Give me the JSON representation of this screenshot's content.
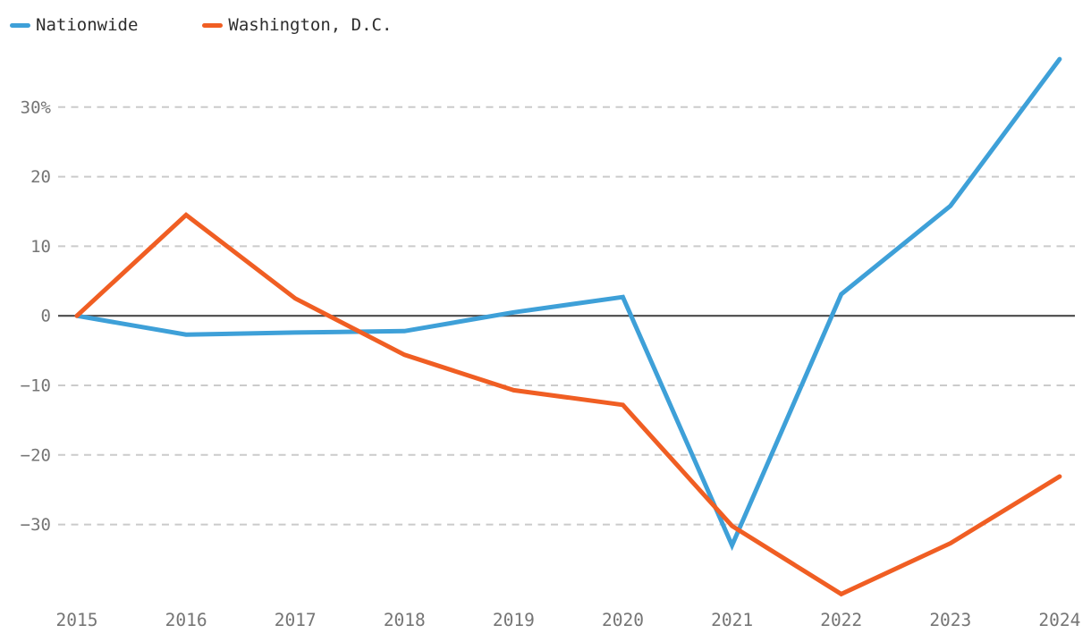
{
  "colors": {
    "background": "#FFFFFF",
    "gridline": "#CBCBCB",
    "zero_line": "#4A4A4A",
    "tick_label": "#757575",
    "legend_text": "#2E2E2E",
    "nationwide_blue": "#3EA0D8",
    "washington_orange": "#F05E23"
  },
  "legend": {
    "position": "top-left",
    "items": [
      {
        "label": "Nationwide",
        "color": "#3EA0D8"
      },
      {
        "label": "Washington, D.C.",
        "color": "#F05E23"
      }
    ]
  },
  "chart_data": {
    "type": "line",
    "title": "",
    "xlabel": "",
    "ylabel": "",
    "y_unit": "%",
    "ylim": [
      -42,
      38
    ],
    "grid": "horizontal-dashed",
    "zero_baseline": true,
    "legend_position": "top-left",
    "x": [
      2015,
      2016,
      2017,
      2018,
      2019,
      2020,
      2021,
      2022,
      2023,
      2024
    ],
    "x_tick_labels": [
      "2015",
      "2016",
      "2017",
      "2018",
      "2019",
      "2020",
      "2021",
      "2022",
      "2023",
      "2024"
    ],
    "y_ticks": [
      {
        "value": 30,
        "label": "30%"
      },
      {
        "value": 20,
        "label": "20"
      },
      {
        "value": 10,
        "label": "10"
      },
      {
        "value": 0,
        "label": "0"
      },
      {
        "value": -10,
        "label": "−10"
      },
      {
        "value": -20,
        "label": "−20"
      },
      {
        "value": -30,
        "label": "−30"
      }
    ],
    "series": [
      {
        "name": "Nationwide",
        "color": "#3EA0D8",
        "values": [
          0,
          -2.7,
          -2.4,
          -2.2,
          0.5,
          2.7,
          -33,
          3.1,
          15.8,
          36.9
        ]
      },
      {
        "name": "Washington, D.C.",
        "color": "#F05E23",
        "values": [
          0,
          14.5,
          2.5,
          -5.6,
          -10.7,
          -12.8,
          -30.2,
          -40,
          -32.7,
          -23.1
        ]
      }
    ]
  }
}
